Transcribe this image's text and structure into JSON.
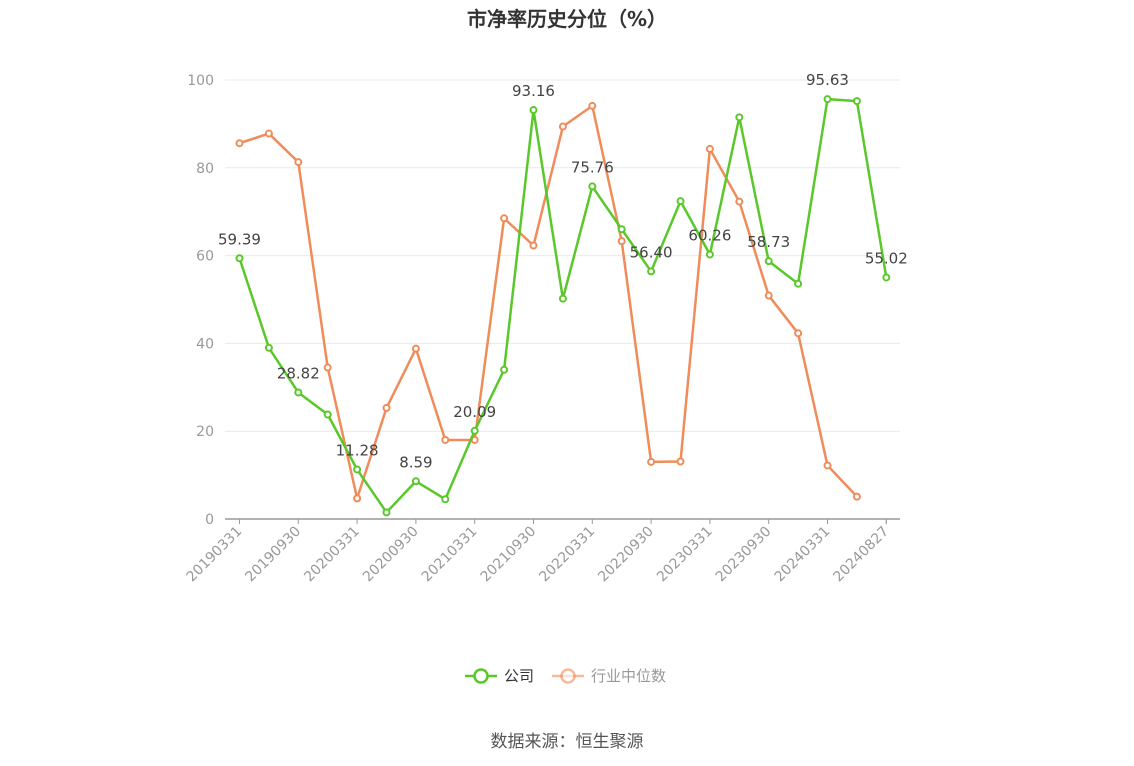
{
  "chart_data": {
    "type": "line",
    "title": "市净率历史分位（%）",
    "source": "数据来源：恒生聚源",
    "ylim": [
      0,
      100
    ],
    "yticks": [
      0,
      20,
      40,
      60,
      80,
      100
    ],
    "x_tick_labels": [
      "20190331",
      "20190930",
      "20200331",
      "20200930",
      "20210331",
      "20210930",
      "20220331",
      "20220930",
      "20230331",
      "20230930",
      "20240331",
      "20240827"
    ],
    "x": [
      "20190331",
      "20190630",
      "20190930",
      "20191231",
      "20200331",
      "20200630",
      "20200930",
      "20201231",
      "20210331",
      "20210630",
      "20210930",
      "20211231",
      "20220331",
      "20220630",
      "20220930",
      "20221231",
      "20230331",
      "20230630",
      "20230930",
      "20231231",
      "20240331",
      "20240630",
      "20240827"
    ],
    "grid": true,
    "legend": "bottom-center",
    "series": [
      {
        "name": "公司",
        "color": "#5ac82a",
        "values": [
          59.39,
          39.0,
          28.82,
          23.8,
          11.28,
          1.5,
          8.59,
          4.5,
          20.09,
          34.0,
          93.16,
          50.2,
          75.76,
          66.0,
          56.4,
          72.4,
          60.26,
          91.5,
          58.73,
          53.6,
          95.63,
          95.2,
          55.02
        ],
        "labels": [
          "59.39",
          "",
          "28.82",
          "",
          "11.28",
          "",
          "8.59",
          "",
          "20.09",
          "",
          "93.16",
          "",
          "75.76",
          "",
          "56.40",
          "",
          "60.26",
          "",
          "58.73",
          "",
          "95.63",
          "",
          "55.02"
        ]
      },
      {
        "name": "行业中位数",
        "color": "#f08c5a",
        "values": [
          85.6,
          87.8,
          81.3,
          34.5,
          4.7,
          25.3,
          38.8,
          18.0,
          18.0,
          68.5,
          62.3,
          89.4,
          94.1,
          63.3,
          13.0,
          13.1,
          84.3,
          72.3,
          50.9,
          42.3,
          12.2,
          5.1,
          null
        ]
      }
    ]
  }
}
